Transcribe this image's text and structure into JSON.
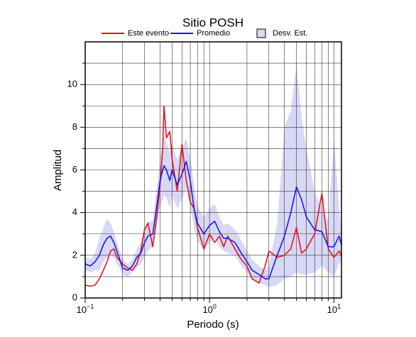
{
  "chart_data": {
    "type": "line",
    "title": "Sitio POSH",
    "x_label": "Periodo (s)",
    "y_label": "Amplitud",
    "x_scale": "log",
    "xlim": [
      0.1,
      11.5
    ],
    "ylim": [
      0,
      12
    ],
    "xticks": [
      {
        "value": 0.1,
        "label": "10",
        "exponent": "−1"
      },
      {
        "value": 1,
        "label": "10",
        "exponent": "0"
      },
      {
        "value": 10,
        "label": "10",
        "exponent": "1"
      }
    ],
    "xminor": [
      0.2,
      0.3,
      0.4,
      0.5,
      0.6,
      0.7,
      0.8,
      0.9,
      2,
      3,
      4,
      5,
      6,
      7,
      8,
      9
    ],
    "yticks": [
      0,
      2,
      4,
      6,
      8,
      10
    ],
    "yminor": [
      1,
      3,
      5,
      7,
      9,
      11
    ],
    "grid": true,
    "legend": "top",
    "x": [
      0.1,
      0.11,
      0.12,
      0.13,
      0.14,
      0.15,
      0.16,
      0.17,
      0.18,
      0.2,
      0.22,
      0.24,
      0.26,
      0.28,
      0.3,
      0.32,
      0.35,
      0.38,
      0.4,
      0.42,
      0.43,
      0.45,
      0.48,
      0.5,
      0.55,
      0.6,
      0.65,
      0.7,
      0.75,
      0.8,
      0.9,
      1.0,
      1.1,
      1.2,
      1.3,
      1.4,
      1.6,
      1.8,
      2.0,
      2.2,
      2.5,
      2.8,
      3.0,
      3.5,
      4.0,
      4.5,
      5.0,
      5.5,
      6.0,
      7.0,
      8.0,
      9.0,
      10.0,
      11.0,
      11.5
    ],
    "series": [
      {
        "name": "Este evento",
        "color": "#e8141c",
        "values": [
          0.6,
          0.55,
          0.6,
          0.9,
          1.3,
          1.7,
          2.2,
          2.3,
          1.9,
          1.6,
          1.4,
          1.3,
          1.6,
          2.2,
          3.2,
          3.5,
          2.4,
          4.0,
          5.3,
          7.0,
          9.0,
          7.5,
          7.8,
          6.5,
          5.0,
          7.2,
          5.5,
          4.5,
          4.2,
          3.3,
          2.3,
          3.0,
          2.6,
          2.9,
          2.4,
          2.9,
          2.3,
          1.8,
          1.5,
          0.9,
          0.7,
          1.5,
          2.2,
          1.9,
          2.0,
          2.3,
          3.3,
          2.1,
          2.3,
          3.0,
          4.9,
          2.3,
          1.9,
          2.2,
          2.0
        ]
      },
      {
        "name": "Promedio",
        "color": "#1a1ae6",
        "values": [
          1.6,
          1.5,
          1.7,
          2.0,
          2.5,
          2.8,
          2.9,
          2.6,
          2.2,
          1.4,
          1.3,
          1.5,
          1.9,
          2.1,
          2.6,
          2.9,
          3.0,
          4.5,
          5.5,
          6.0,
          6.2,
          6.0,
          5.5,
          6.0,
          5.3,
          5.8,
          6.4,
          5.5,
          4.2,
          3.5,
          3.0,
          3.4,
          3.6,
          3.1,
          2.8,
          2.8,
          2.6,
          2.1,
          1.7,
          1.3,
          1.1,
          0.9,
          0.9,
          2.0,
          2.9,
          4.0,
          5.2,
          4.6,
          3.8,
          3.2,
          3.1,
          2.4,
          2.4,
          2.9,
          2.5
        ]
      }
    ],
    "band": {
      "name": "Desv. Est.",
      "color": "#d8d8f6",
      "upper": [
        1.9,
        1.8,
        2.1,
        2.8,
        3.3,
        3.7,
        3.5,
        3.1,
        2.6,
        1.8,
        1.6,
        1.8,
        2.3,
        2.6,
        3.3,
        3.6,
        3.6,
        5.4,
        6.5,
        7.3,
        7.6,
        7.3,
        6.8,
        7.2,
        6.5,
        7.0,
        7.5,
        6.6,
        5.3,
        4.3,
        3.8,
        4.2,
        4.4,
        3.8,
        3.4,
        3.5,
        3.2,
        2.7,
        2.2,
        1.8,
        1.5,
        1.3,
        1.5,
        3.5,
        8.0,
        8.8,
        10.9,
        8.5,
        7.0,
        5.0,
        4.2,
        3.6,
        7.5,
        4.2,
        3.2
      ],
      "lower": [
        1.3,
        1.2,
        1.3,
        1.3,
        1.7,
        1.9,
        2.0,
        1.9,
        1.6,
        1.1,
        1.0,
        1.2,
        1.4,
        1.6,
        1.9,
        2.2,
        2.4,
        3.5,
        4.3,
        4.6,
        4.8,
        4.7,
        4.2,
        4.8,
        4.2,
        4.6,
        5.2,
        4.3,
        3.3,
        2.7,
        2.2,
        2.6,
        2.8,
        2.4,
        2.2,
        2.1,
        2.0,
        1.5,
        1.2,
        0.9,
        0.7,
        0.6,
        0.5,
        0.6,
        0.9,
        1.0,
        1.2,
        1.1,
        1.1,
        1.2,
        1.5,
        1.2,
        1.0,
        1.6,
        1.8
      ]
    }
  }
}
